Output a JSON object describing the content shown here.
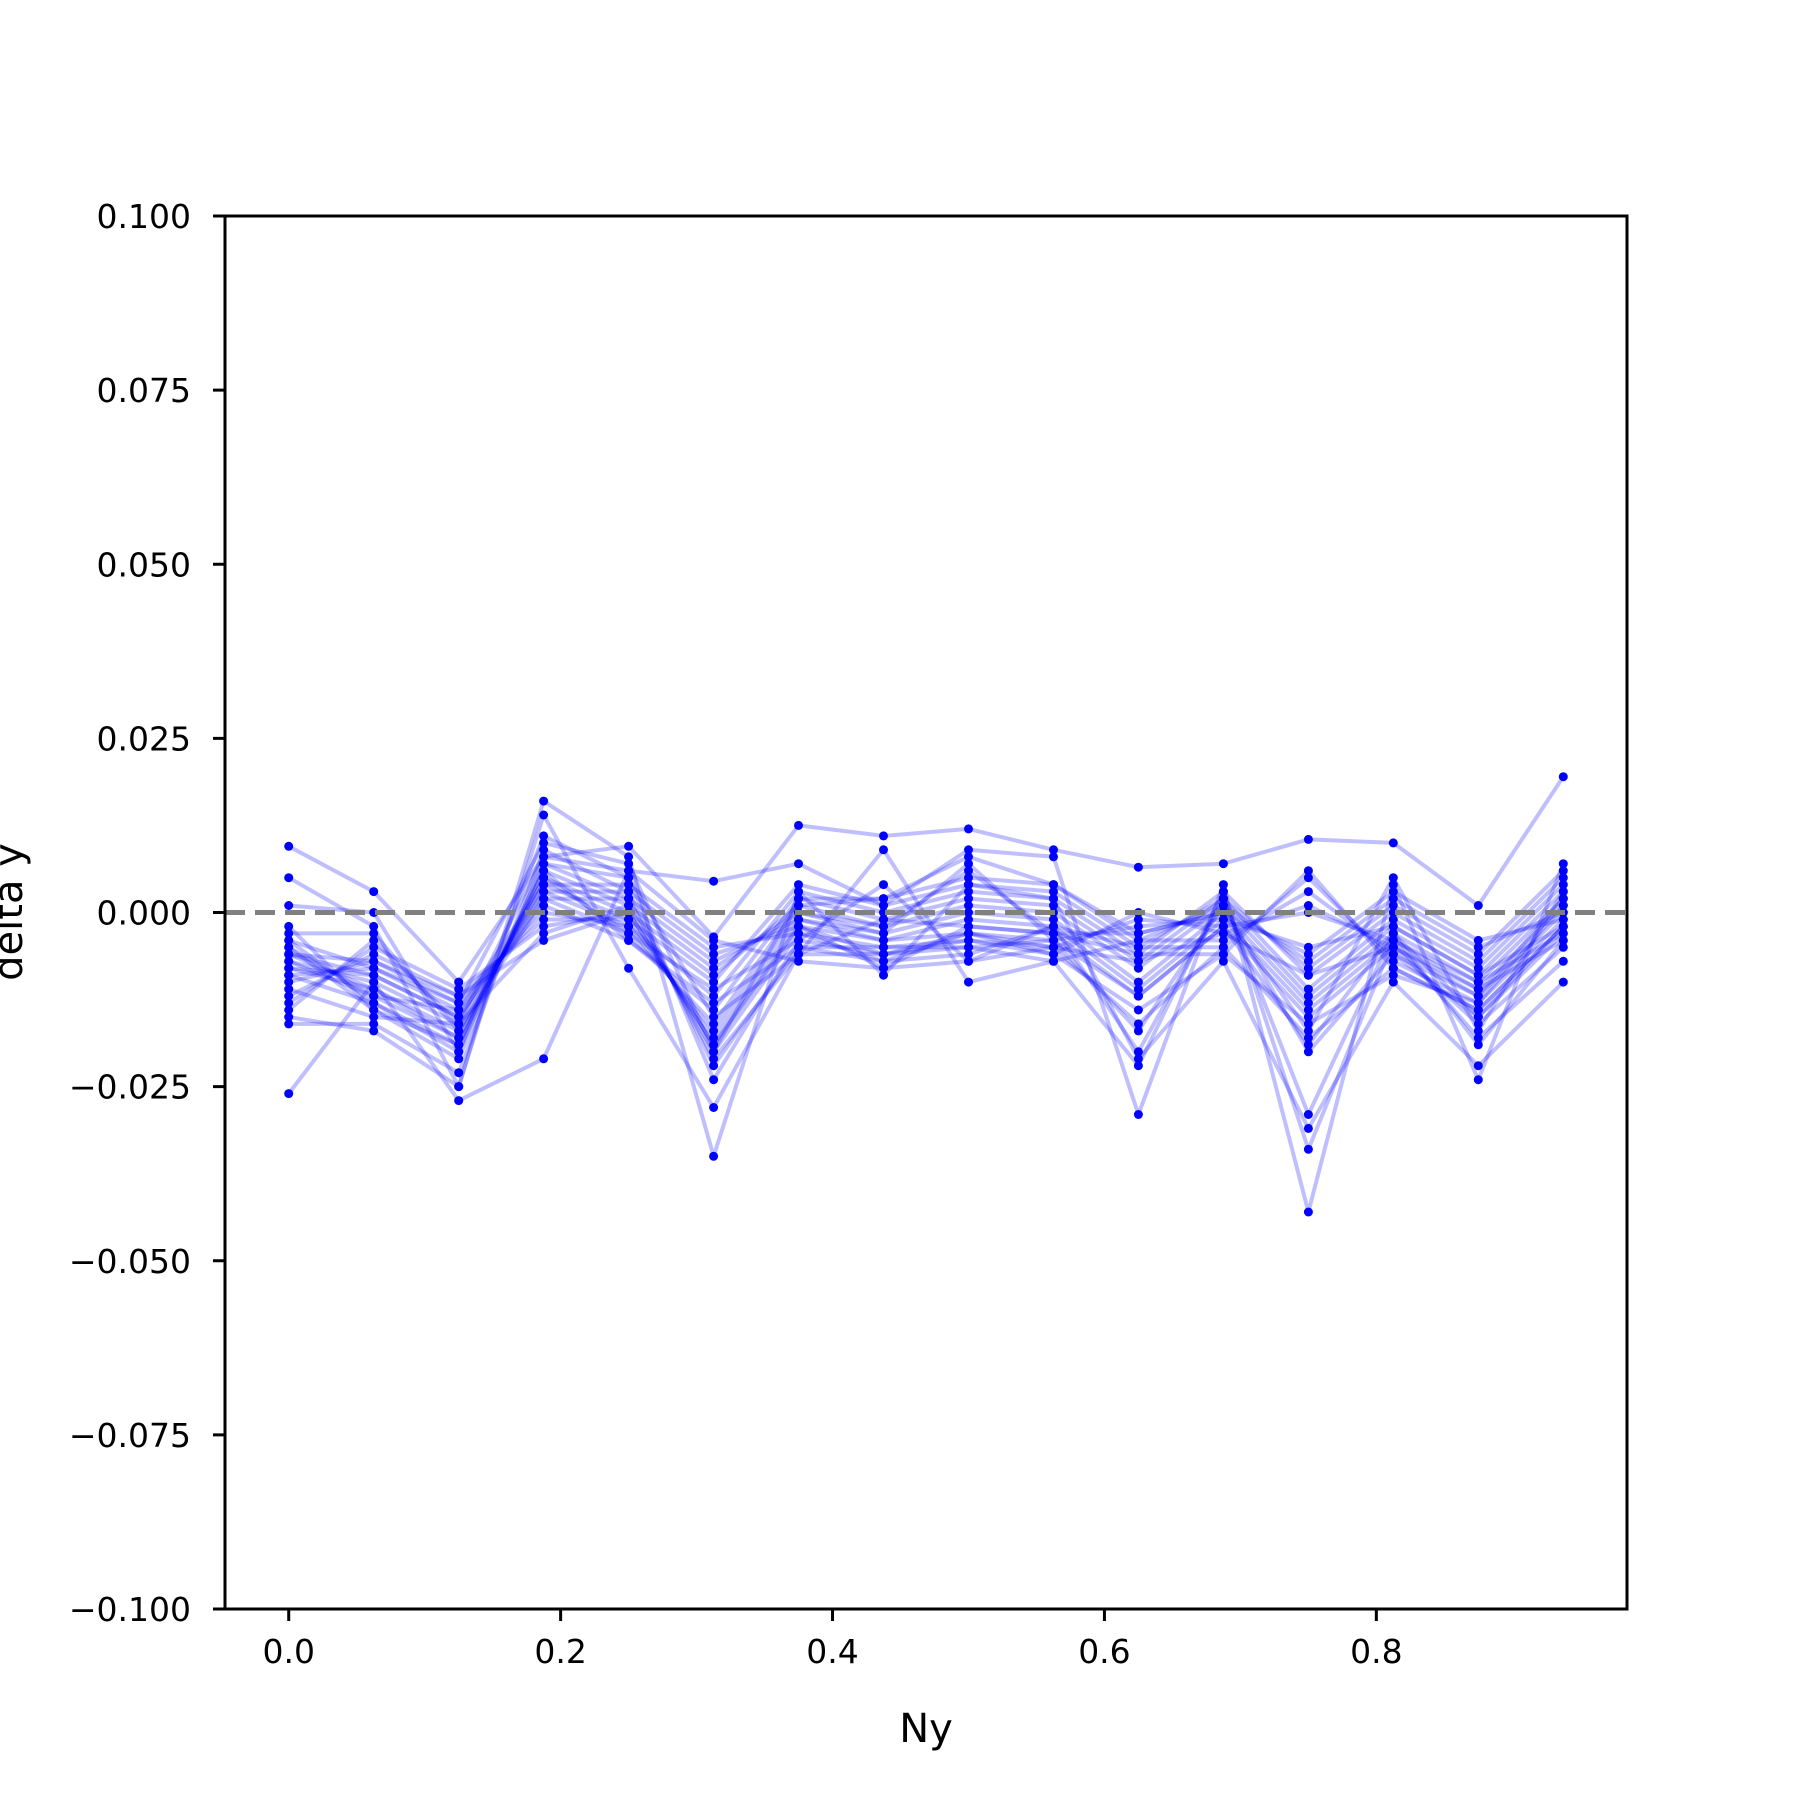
{
  "chart_data": {
    "type": "line",
    "title": "",
    "xlabel": "Ny",
    "ylabel": "delta y",
    "xlim": [
      -0.046875,
      0.984375
    ],
    "ylim": [
      -0.1,
      0.1
    ],
    "xticks": [
      0.0,
      0.2,
      0.4,
      0.6,
      0.8
    ],
    "xtick_labels": [
      "0.0",
      "0.2",
      "0.4",
      "0.6",
      "0.8"
    ],
    "yticks": [
      -0.1,
      -0.075,
      -0.05,
      -0.025,
      0.0,
      0.025,
      0.05,
      0.075,
      0.1
    ],
    "ytick_labels": [
      "−0.100",
      "−0.075",
      "−0.050",
      "−0.025",
      "0.000",
      "0.025",
      "0.050",
      "0.075",
      "0.100"
    ],
    "grid": false,
    "legend": "none",
    "reference_line": {
      "y": 0.0,
      "style": "dashed",
      "color": "#808080"
    },
    "series_color": "#0000ff",
    "x": [
      0.0,
      0.0625,
      0.125,
      0.1875,
      0.25,
      0.3125,
      0.375,
      0.4375,
      0.5,
      0.5625,
      0.625,
      0.6875,
      0.75,
      0.8125,
      0.875,
      0.9375
    ],
    "series": [
      {
        "values": [
          0.0095,
          0.003,
          -0.01,
          0.008,
          0.0095,
          -0.0035,
          0.0125,
          0.011,
          0.012,
          0.009,
          0.0065,
          0.007,
          0.0105,
          0.01,
          0.001,
          0.0195
        ]
      },
      {
        "values": [
          -0.026,
          -0.01,
          -0.027,
          -0.021,
          0.006,
          0.0045,
          0.007,
          0.001,
          0.009,
          0.008,
          -0.029,
          0.004,
          -0.043,
          0.004,
          -0.024,
          0.007
        ]
      },
      {
        "values": [
          0.005,
          -0.002,
          -0.025,
          0.016,
          0.008,
          -0.035,
          0.003,
          -0.009,
          0.004,
          0.002,
          -0.021,
          -0.007,
          -0.031,
          -0.01,
          -0.022,
          -0.01
        ]
      },
      {
        "values": [
          -0.015,
          -0.017,
          -0.025,
          0.014,
          -0.008,
          -0.028,
          -0.006,
          0.009,
          -0.01,
          -0.007,
          -0.022,
          0.003,
          -0.034,
          -0.004,
          -0.018,
          -0.007
        ]
      },
      {
        "values": [
          0.001,
          0.0,
          -0.02,
          0.011,
          0.005,
          -0.024,
          -0.004,
          0.004,
          -0.007,
          -0.002,
          -0.02,
          0.002,
          -0.029,
          -0.003,
          -0.019,
          -0.004
        ]
      },
      {
        "values": [
          -0.016,
          -0.016,
          -0.023,
          0.009,
          0.003,
          -0.022,
          -0.005,
          -0.005,
          -0.005,
          -0.004,
          -0.017,
          0.001,
          -0.02,
          -0.006,
          -0.015,
          -0.003
        ]
      },
      {
        "values": [
          -0.002,
          -0.014,
          -0.021,
          0.007,
          0.002,
          -0.021,
          -0.006,
          -0.006,
          -0.004,
          -0.005,
          -0.016,
          -0.005,
          -0.018,
          -0.008,
          -0.014,
          -0.002
        ]
      },
      {
        "values": [
          -0.004,
          -0.013,
          -0.019,
          0.006,
          0.001,
          -0.02,
          -0.003,
          -0.007,
          -0.003,
          -0.006,
          -0.014,
          -0.006,
          -0.016,
          -0.009,
          -0.013,
          -0.001
        ]
      },
      {
        "values": [
          -0.005,
          -0.012,
          -0.018,
          0.005,
          0.0,
          -0.019,
          -0.002,
          -0.008,
          -0.002,
          -0.003,
          -0.012,
          -0.002,
          -0.015,
          -0.005,
          -0.012,
          0.0
        ]
      },
      {
        "values": [
          -0.006,
          -0.011,
          -0.017,
          0.004,
          -0.001,
          -0.018,
          -0.001,
          -0.004,
          -0.001,
          -0.002,
          -0.011,
          -0.001,
          -0.014,
          -0.004,
          -0.011,
          0.001
        ]
      },
      {
        "values": [
          -0.007,
          -0.01,
          -0.016,
          0.003,
          -0.002,
          -0.017,
          0.0,
          -0.003,
          0.0,
          -0.001,
          -0.01,
          0.0,
          -0.013,
          -0.003,
          -0.01,
          0.002
        ]
      },
      {
        "values": [
          -0.008,
          -0.009,
          -0.015,
          0.002,
          -0.003,
          -0.016,
          0.001,
          -0.002,
          0.001,
          0.0,
          -0.008,
          0.001,
          -0.012,
          -0.002,
          -0.009,
          0.003
        ]
      },
      {
        "values": [
          -0.009,
          -0.008,
          -0.014,
          0.001,
          -0.004,
          -0.014,
          0.002,
          -0.001,
          0.002,
          0.001,
          -0.007,
          0.002,
          -0.011,
          -0.001,
          -0.008,
          0.004
        ]
      },
      {
        "values": [
          -0.01,
          -0.007,
          -0.013,
          0.0,
          -0.002,
          -0.012,
          0.003,
          0.0,
          0.003,
          0.002,
          -0.006,
          0.003,
          -0.009,
          0.0,
          -0.007,
          0.005
        ]
      },
      {
        "values": [
          -0.012,
          -0.006,
          -0.012,
          -0.001,
          -0.001,
          -0.01,
          0.004,
          0.001,
          0.004,
          0.003,
          -0.005,
          0.002,
          -0.008,
          0.001,
          -0.006,
          0.006
        ]
      },
      {
        "values": [
          -0.013,
          -0.005,
          -0.011,
          -0.002,
          0.0,
          -0.009,
          0.001,
          0.002,
          0.005,
          0.004,
          -0.004,
          0.001,
          -0.007,
          0.002,
          -0.005,
          0.0
        ]
      },
      {
        "values": [
          -0.014,
          -0.004,
          -0.016,
          -0.003,
          0.001,
          -0.008,
          0.0,
          -0.002,
          0.006,
          -0.003,
          -0.003,
          0.0,
          -0.006,
          0.003,
          -0.004,
          -0.001
        ]
      },
      {
        "values": [
          -0.003,
          -0.003,
          -0.017,
          0.002,
          0.002,
          -0.007,
          -0.001,
          -0.003,
          0.007,
          -0.004,
          -0.002,
          -0.001,
          -0.005,
          -0.002,
          -0.009,
          -0.002
        ]
      },
      {
        "values": [
          -0.006,
          -0.009,
          -0.015,
          0.003,
          0.003,
          -0.006,
          -0.002,
          -0.004,
          -0.003,
          -0.005,
          -0.001,
          -0.002,
          0.0,
          -0.004,
          -0.01,
          -0.003
        ]
      },
      {
        "values": [
          -0.007,
          -0.012,
          -0.014,
          0.004,
          0.004,
          -0.005,
          -0.003,
          -0.005,
          -0.004,
          -0.006,
          0.0,
          -0.003,
          0.001,
          -0.005,
          -0.011,
          -0.004
        ]
      },
      {
        "values": [
          -0.008,
          -0.011,
          -0.018,
          0.005,
          -0.003,
          -0.011,
          -0.004,
          -0.006,
          -0.005,
          -0.007,
          -0.004,
          -0.004,
          0.003,
          -0.006,
          -0.012,
          0.002
        ]
      },
      {
        "values": [
          -0.005,
          -0.014,
          -0.019,
          0.006,
          -0.004,
          -0.013,
          -0.005,
          -0.007,
          -0.006,
          -0.002,
          -0.005,
          -0.005,
          0.005,
          -0.007,
          -0.013,
          0.001
        ]
      },
      {
        "values": [
          -0.009,
          -0.013,
          -0.02,
          0.007,
          0.005,
          -0.015,
          -0.006,
          -0.001,
          -0.002,
          -0.003,
          -0.006,
          -0.006,
          0.006,
          -0.008,
          -0.014,
          -0.002
        ]
      },
      {
        "values": [
          -0.011,
          -0.015,
          -0.016,
          0.008,
          0.006,
          -0.004,
          -0.007,
          -0.008,
          -0.007,
          -0.005,
          -0.007,
          -0.003,
          -0.009,
          -0.005,
          -0.016,
          -0.005
        ]
      },
      {
        "values": [
          -0.004,
          -0.008,
          -0.013,
          0.01,
          0.007,
          -0.02,
          0.002,
          0.002,
          0.008,
          0.004,
          -0.003,
          0.0,
          -0.017,
          0.005,
          -0.017,
          0.003
        ]
      },
      {
        "values": [
          -0.006,
          -0.007,
          -0.012,
          -0.004,
          0.0,
          -0.019,
          -0.002,
          -0.006,
          -0.003,
          -0.004,
          -0.012,
          -0.002,
          -0.019,
          -0.003,
          -0.015,
          -0.002
        ]
      }
    ]
  }
}
